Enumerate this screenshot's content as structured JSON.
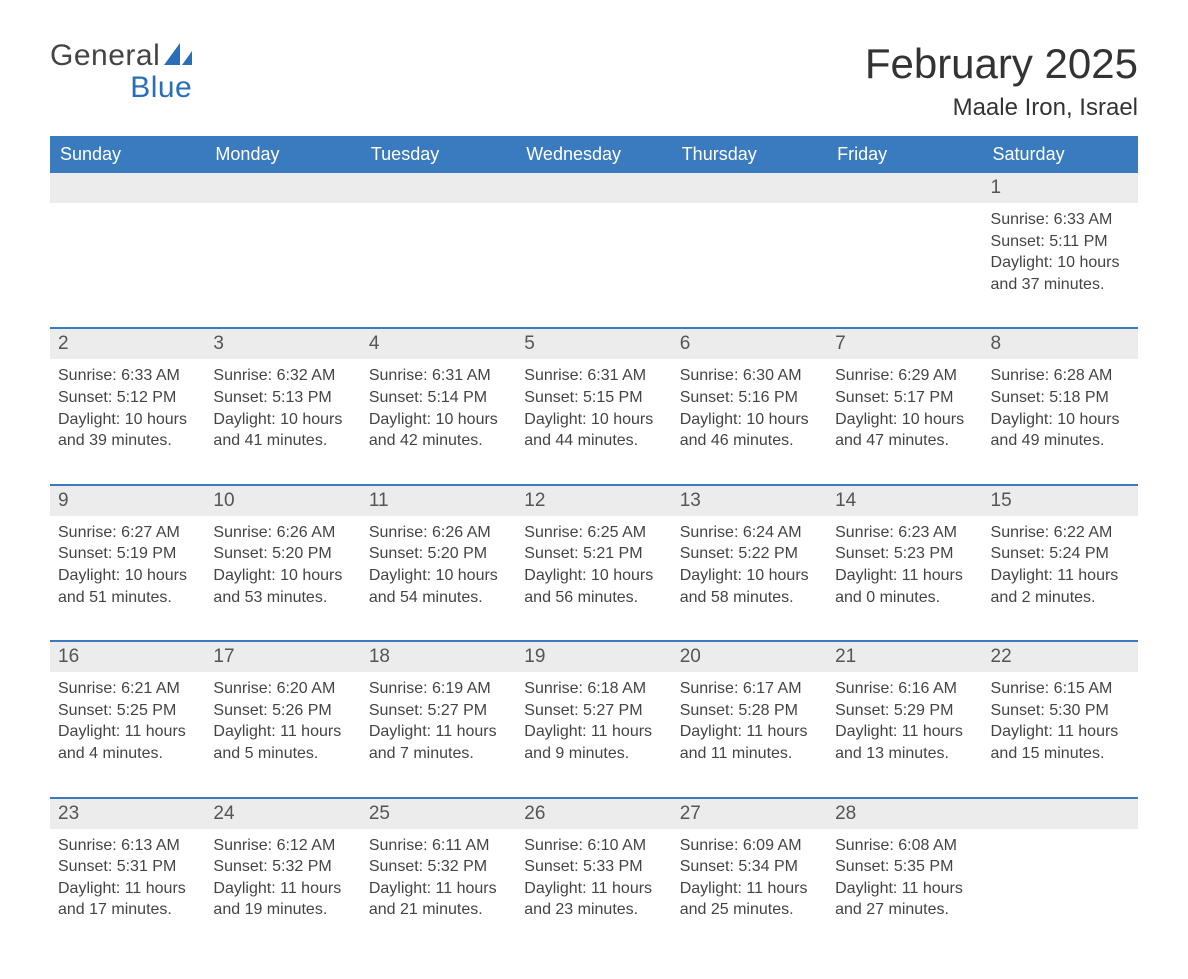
{
  "brand": {
    "word1": "General",
    "word2": "Blue",
    "logo_color": "#2a6db8"
  },
  "title": "February 2025",
  "location": "Maale Iron, Israel",
  "colors": {
    "header_bg": "#3a7abf",
    "header_text": "#ffffff",
    "daynum_bg": "#ececec",
    "rule": "#3a7abf",
    "text": "#444444"
  },
  "days_of_week": [
    "Sunday",
    "Monday",
    "Tuesday",
    "Wednesday",
    "Thursday",
    "Friday",
    "Saturday"
  ],
  "weeks": [
    [
      {
        "n": "",
        "sr": "",
        "ss": "",
        "dl": ""
      },
      {
        "n": "",
        "sr": "",
        "ss": "",
        "dl": ""
      },
      {
        "n": "",
        "sr": "",
        "ss": "",
        "dl": ""
      },
      {
        "n": "",
        "sr": "",
        "ss": "",
        "dl": ""
      },
      {
        "n": "",
        "sr": "",
        "ss": "",
        "dl": ""
      },
      {
        "n": "",
        "sr": "",
        "ss": "",
        "dl": ""
      },
      {
        "n": "1",
        "sr": "Sunrise: 6:33 AM",
        "ss": "Sunset: 5:11 PM",
        "dl": "Daylight: 10 hours and 37 minutes."
      }
    ],
    [
      {
        "n": "2",
        "sr": "Sunrise: 6:33 AM",
        "ss": "Sunset: 5:12 PM",
        "dl": "Daylight: 10 hours and 39 minutes."
      },
      {
        "n": "3",
        "sr": "Sunrise: 6:32 AM",
        "ss": "Sunset: 5:13 PM",
        "dl": "Daylight: 10 hours and 41 minutes."
      },
      {
        "n": "4",
        "sr": "Sunrise: 6:31 AM",
        "ss": "Sunset: 5:14 PM",
        "dl": "Daylight: 10 hours and 42 minutes."
      },
      {
        "n": "5",
        "sr": "Sunrise: 6:31 AM",
        "ss": "Sunset: 5:15 PM",
        "dl": "Daylight: 10 hours and 44 minutes."
      },
      {
        "n": "6",
        "sr": "Sunrise: 6:30 AM",
        "ss": "Sunset: 5:16 PM",
        "dl": "Daylight: 10 hours and 46 minutes."
      },
      {
        "n": "7",
        "sr": "Sunrise: 6:29 AM",
        "ss": "Sunset: 5:17 PM",
        "dl": "Daylight: 10 hours and 47 minutes."
      },
      {
        "n": "8",
        "sr": "Sunrise: 6:28 AM",
        "ss": "Sunset: 5:18 PM",
        "dl": "Daylight: 10 hours and 49 minutes."
      }
    ],
    [
      {
        "n": "9",
        "sr": "Sunrise: 6:27 AM",
        "ss": "Sunset: 5:19 PM",
        "dl": "Daylight: 10 hours and 51 minutes."
      },
      {
        "n": "10",
        "sr": "Sunrise: 6:26 AM",
        "ss": "Sunset: 5:20 PM",
        "dl": "Daylight: 10 hours and 53 minutes."
      },
      {
        "n": "11",
        "sr": "Sunrise: 6:26 AM",
        "ss": "Sunset: 5:20 PM",
        "dl": "Daylight: 10 hours and 54 minutes."
      },
      {
        "n": "12",
        "sr": "Sunrise: 6:25 AM",
        "ss": "Sunset: 5:21 PM",
        "dl": "Daylight: 10 hours and 56 minutes."
      },
      {
        "n": "13",
        "sr": "Sunrise: 6:24 AM",
        "ss": "Sunset: 5:22 PM",
        "dl": "Daylight: 10 hours and 58 minutes."
      },
      {
        "n": "14",
        "sr": "Sunrise: 6:23 AM",
        "ss": "Sunset: 5:23 PM",
        "dl": "Daylight: 11 hours and 0 minutes."
      },
      {
        "n": "15",
        "sr": "Sunrise: 6:22 AM",
        "ss": "Sunset: 5:24 PM",
        "dl": "Daylight: 11 hours and 2 minutes."
      }
    ],
    [
      {
        "n": "16",
        "sr": "Sunrise: 6:21 AM",
        "ss": "Sunset: 5:25 PM",
        "dl": "Daylight: 11 hours and 4 minutes."
      },
      {
        "n": "17",
        "sr": "Sunrise: 6:20 AM",
        "ss": "Sunset: 5:26 PM",
        "dl": "Daylight: 11 hours and 5 minutes."
      },
      {
        "n": "18",
        "sr": "Sunrise: 6:19 AM",
        "ss": "Sunset: 5:27 PM",
        "dl": "Daylight: 11 hours and 7 minutes."
      },
      {
        "n": "19",
        "sr": "Sunrise: 6:18 AM",
        "ss": "Sunset: 5:27 PM",
        "dl": "Daylight: 11 hours and 9 minutes."
      },
      {
        "n": "20",
        "sr": "Sunrise: 6:17 AM",
        "ss": "Sunset: 5:28 PM",
        "dl": "Daylight: 11 hours and 11 minutes."
      },
      {
        "n": "21",
        "sr": "Sunrise: 6:16 AM",
        "ss": "Sunset: 5:29 PM",
        "dl": "Daylight: 11 hours and 13 minutes."
      },
      {
        "n": "22",
        "sr": "Sunrise: 6:15 AM",
        "ss": "Sunset: 5:30 PM",
        "dl": "Daylight: 11 hours and 15 minutes."
      }
    ],
    [
      {
        "n": "23",
        "sr": "Sunrise: 6:13 AM",
        "ss": "Sunset: 5:31 PM",
        "dl": "Daylight: 11 hours and 17 minutes."
      },
      {
        "n": "24",
        "sr": "Sunrise: 6:12 AM",
        "ss": "Sunset: 5:32 PM",
        "dl": "Daylight: 11 hours and 19 minutes."
      },
      {
        "n": "25",
        "sr": "Sunrise: 6:11 AM",
        "ss": "Sunset: 5:32 PM",
        "dl": "Daylight: 11 hours and 21 minutes."
      },
      {
        "n": "26",
        "sr": "Sunrise: 6:10 AM",
        "ss": "Sunset: 5:33 PM",
        "dl": "Daylight: 11 hours and 23 minutes."
      },
      {
        "n": "27",
        "sr": "Sunrise: 6:09 AM",
        "ss": "Sunset: 5:34 PM",
        "dl": "Daylight: 11 hours and 25 minutes."
      },
      {
        "n": "28",
        "sr": "Sunrise: 6:08 AM",
        "ss": "Sunset: 5:35 PM",
        "dl": "Daylight: 11 hours and 27 minutes."
      },
      {
        "n": "",
        "sr": "",
        "ss": "",
        "dl": ""
      }
    ]
  ]
}
